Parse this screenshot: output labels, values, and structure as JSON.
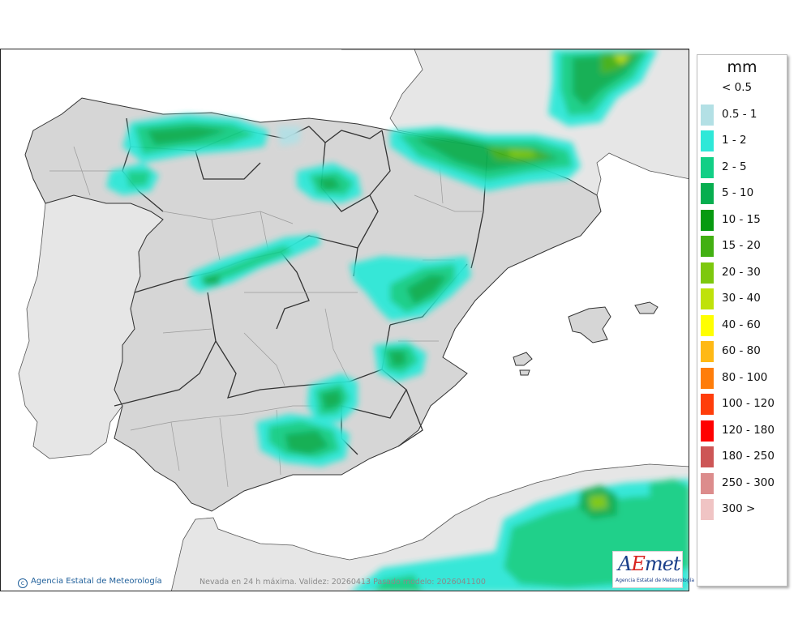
{
  "map": {
    "region": "Península Ibérica y Baleares",
    "credit": "Agencia Estatal de Meteorología",
    "footnote": "Nevada en 24 h máxima. Validez: 20260413 Pasado modelo: 2026041100",
    "logo": {
      "word": "AEmet",
      "subtitle": "Agencia Estatal de Meteorología"
    }
  },
  "legend": {
    "unit": "mm",
    "classes": [
      {
        "label": "< 0.5",
        "color": "#ffffff"
      },
      {
        "label": "0.5 - 1",
        "color": "#b3e0e5"
      },
      {
        "label": "1 - 2",
        "color": "#2ee8d8"
      },
      {
        "label": "2 - 5",
        "color": "#12cf86"
      },
      {
        "label": "5 - 10",
        "color": "#07ae4f"
      },
      {
        "label": "10 - 15",
        "color": "#079a10"
      },
      {
        "label": "15 - 20",
        "color": "#42b012"
      },
      {
        "label": "20 - 30",
        "color": "#7dc80d"
      },
      {
        "label": "30 - 40",
        "color": "#bfe20a"
      },
      {
        "label": "40 - 60",
        "color": "#ffff00"
      },
      {
        "label": "60 - 80",
        "color": "#ffb915"
      },
      {
        "label": "80 - 100",
        "color": "#ff7d0a"
      },
      {
        "label": "100 - 120",
        "color": "#ff3d0a"
      },
      {
        "label": "120 - 180",
        "color": "#ff0000"
      },
      {
        "label": "180 - 250",
        "color": "#cd5656"
      },
      {
        "label": "250 - 300",
        "color": "#dc8c8c"
      },
      {
        "label": "300 >",
        "color": "#f0c4c4"
      }
    ]
  }
}
